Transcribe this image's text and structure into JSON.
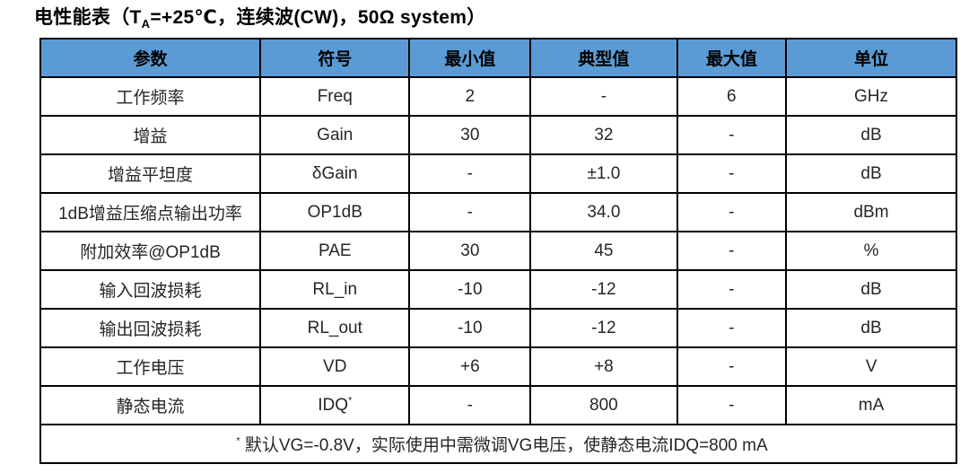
{
  "title": {
    "part1": "电性能表（T",
    "subscript": "A",
    "part2": "=+25℃，连续波(CW)，50Ω system）"
  },
  "colors": {
    "header_bg": "#5B9BD5",
    "border": "#000000",
    "body_text": "#262626"
  },
  "table": {
    "headers": [
      "参数",
      "符号",
      "最小值",
      "典型值",
      "最大值",
      "单位"
    ],
    "rows": [
      [
        "工作频率",
        "Freq",
        "2",
        "-",
        "6",
        "GHz"
      ],
      [
        "增益",
        "Gain",
        "30",
        "32",
        "-",
        "dB"
      ],
      [
        "增益平坦度",
        "δGain",
        "-",
        "±1.0",
        "-",
        "dB"
      ],
      [
        "1dB增益压缩点输出功率",
        "OP1dB",
        "-",
        "34.0",
        "-",
        "dBm"
      ],
      [
        "附加效率@OP1dB",
        "PAE",
        "30",
        "45",
        "-",
        "%"
      ],
      [
        "输入回波损耗",
        "RL_in",
        "-10",
        "-12",
        "-",
        "dB"
      ],
      [
        "输出回波损耗",
        "RL_out",
        "-10",
        "-12",
        "-",
        "dB"
      ],
      [
        "工作电压",
        "VD",
        "+6",
        "+8",
        "-",
        "V"
      ],
      [
        "静态电流",
        "IDQ",
        "-",
        "800",
        "-",
        "mA"
      ]
    ],
    "idq_superscript": "*",
    "footnote": {
      "superscript": "*",
      "text": " 默认VG=-0.8V，实际使用中需微调VG电压，使静态电流IDQ=800 mA"
    }
  }
}
